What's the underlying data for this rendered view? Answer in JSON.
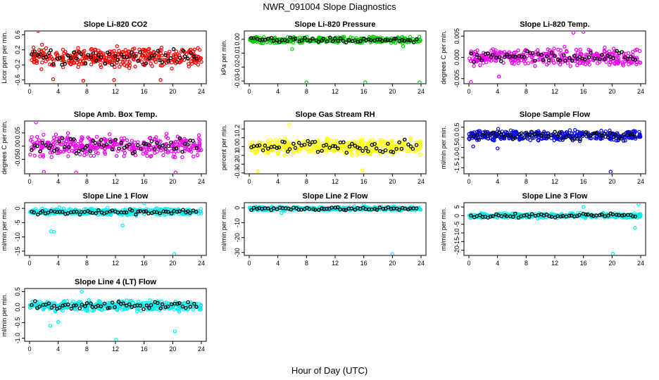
{
  "page": {
    "title": "NWR_091004  Slope Diagnostics",
    "xlabel": "Hour of Day (UTC)"
  },
  "chart_data": [
    {
      "type": "scatter",
      "title": "Slope Li-820 CO2",
      "ylabel": "Licor ppm per min.",
      "color": "#ff0000",
      "xlim": [
        0,
        24
      ],
      "ylim": [
        -0.7,
        0.7
      ],
      "xticks": [
        0,
        4,
        8,
        12,
        16,
        20,
        24
      ],
      "yticks": [
        -0.6,
        -0.2,
        0.2,
        0.6
      ],
      "ytick_labels": [
        "-0.6",
        "-0.2",
        "0.2",
        "0.6"
      ],
      "center": 0.0,
      "spread": 0.22,
      "outliers": [
        [
          1.2,
          0.7
        ],
        [
          7.5,
          -0.62
        ],
        [
          11.8,
          -0.6
        ],
        [
          18.3,
          -0.6
        ],
        [
          3.3,
          -0.58
        ]
      ],
      "n": 380,
      "seed": 11
    },
    {
      "type": "scatter",
      "title": "Slope Li-820 Pressure",
      "ylabel": "kPa per min.",
      "color": "#00cc00",
      "xlim": [
        0,
        24
      ],
      "ylim": [
        -0.032,
        0.006
      ],
      "xticks": [
        0,
        4,
        8,
        12,
        16,
        20,
        24
      ],
      "yticks": [
        -0.03,
        -0.02,
        -0.01,
        0.0
      ],
      "ytick_labels": [
        "-0.03",
        "-0.02",
        "-0.01",
        "0.00"
      ],
      "center": -0.0005,
      "spread": 0.002,
      "outliers": [
        [
          8.0,
          -0.031
        ],
        [
          16.2,
          -0.031
        ],
        [
          23.8,
          -0.031
        ],
        [
          6.0,
          -0.007
        ],
        [
          21.5,
          -0.005
        ]
      ],
      "n": 330,
      "seed": 23
    },
    {
      "type": "scatter",
      "title": "Slope Li-820 Temp.",
      "ylabel": "degrees C per min.",
      "color": "#ee00ee",
      "xlim": [
        0,
        24
      ],
      "ylim": [
        -0.0062,
        0.0062
      ],
      "xticks": [
        0,
        4,
        8,
        12,
        16,
        20,
        24
      ],
      "yticks": [
        -0.005,
        0.0,
        0.005
      ],
      "ytick_labels": [
        "-0.005",
        "0.000",
        "0.005"
      ],
      "center": 0.0,
      "spread": 0.0017,
      "outliers": [
        [
          0.3,
          -0.0058
        ],
        [
          16.0,
          0.006
        ],
        [
          14.6,
          0.0058
        ],
        [
          4.2,
          -0.0045
        ]
      ],
      "n": 360,
      "seed": 37
    },
    {
      "type": "scatter",
      "title": "Slope Amb. Box Temp.",
      "ylabel": "degrees C per min.",
      "color": "#ee00ee",
      "xlim": [
        0,
        24
      ],
      "ylim": [
        -0.105,
        0.095
      ],
      "xticks": [
        0,
        4,
        8,
        12,
        16,
        20,
        24
      ],
      "yticks": [
        -0.05,
        0.0,
        0.05
      ],
      "ytick_labels": [
        "-0.05",
        "0.00",
        "0.05"
      ],
      "center": 0.0,
      "spread": 0.034,
      "outliers": [
        [
          2.0,
          -0.098
        ],
        [
          6.5,
          -0.1
        ],
        [
          20.4,
          -0.1
        ],
        [
          0.9,
          0.09
        ]
      ],
      "n": 360,
      "seed": 41
    },
    {
      "type": "scatter",
      "title": "Slope Gas Stream RH",
      "ylabel": "percent per min.",
      "color": "#ffff00",
      "xlim": [
        0,
        24
      ],
      "ylim": [
        -0.31,
        0.29
      ],
      "xticks": [
        0,
        4,
        8,
        12,
        16,
        20,
        24
      ],
      "yticks": [
        -0.3,
        -0.2,
        -0.1,
        0.0,
        0.1,
        0.2
      ],
      "ytick_labels": [
        "-0.3",
        "-0.2",
        "-0.1",
        "0.0",
        "0.1",
        "0.2"
      ],
      "center": 0.0,
      "spread": 0.08,
      "outliers": [
        [
          5.6,
          0.25
        ],
        [
          1.2,
          -0.28
        ],
        [
          15.8,
          -0.27
        ]
      ],
      "n": 380,
      "seed": 53
    },
    {
      "type": "scatter",
      "title": "Slope Sample Flow",
      "ylabel": "ml/min per min.",
      "color": "#0000ee",
      "xlim": [
        0,
        24
      ],
      "ylim": [
        -1.8,
        0.8
      ],
      "xticks": [
        0,
        4,
        8,
        12,
        16,
        20,
        24
      ],
      "yticks": [
        -1.5,
        -1.0,
        -0.5,
        0.0,
        0.5
      ],
      "ytick_labels": [
        "-1.5",
        "-1.0",
        "-0.5",
        "0.0",
        "0.5"
      ],
      "center": 0.1,
      "spread": 0.22,
      "outliers": [
        [
          19.8,
          -1.7
        ],
        [
          4.0,
          -0.55
        ],
        [
          0.6,
          -0.45
        ]
      ],
      "n": 360,
      "seed": 67
    },
    {
      "type": "scatter",
      "title": "Slope Line 1 Flow",
      "ylabel": "ml/min per min.",
      "color": "#00eeee",
      "xlim": [
        0,
        24
      ],
      "ylim": [
        -16.5,
        2.0
      ],
      "xticks": [
        0,
        4,
        8,
        12,
        16,
        20,
        24
      ],
      "yticks": [
        -15,
        -10,
        -5,
        0
      ],
      "ytick_labels": [
        "-15",
        "-10",
        "-5",
        "0"
      ],
      "center": -1.2,
      "spread": 1.0,
      "outliers": [
        [
          20.2,
          -16.0
        ],
        [
          3.0,
          -8.0
        ],
        [
          3.4,
          -8.2
        ],
        [
          13.0,
          -6.0
        ],
        [
          16.0,
          1.8
        ]
      ],
      "n": 380,
      "seed": 79
    },
    {
      "type": "scatter",
      "title": "Slope Line 2 Flow",
      "ylabel": "ml/min per min.",
      "color": "#00eeee",
      "xlim": [
        0,
        24
      ],
      "ylim": [
        -32,
        3.5
      ],
      "xticks": [
        0,
        4,
        8,
        12,
        16,
        20,
        24
      ],
      "yticks": [
        -30,
        -20,
        -10,
        0
      ],
      "ytick_labels": [
        "-30",
        "-20",
        "-10",
        "0"
      ],
      "center": -0.5,
      "spread": 1.1,
      "outliers": [
        [
          20.0,
          -31.0
        ],
        [
          16.0,
          2.8
        ],
        [
          4.5,
          -3.5
        ]
      ],
      "n": 380,
      "seed": 83
    },
    {
      "type": "scatter",
      "title": "Slope Line 3 Flow",
      "ylabel": "ml/min per min.",
      "color": "#00eeee",
      "xlim": [
        0,
        24
      ],
      "ylim": [
        -23,
        7.5
      ],
      "xticks": [
        0,
        4,
        8,
        12,
        16,
        20,
        24
      ],
      "yticks": [
        -20,
        -15,
        -10,
        -5,
        0,
        5
      ],
      "ytick_labels": [
        "-20",
        "-15",
        "-10",
        "-5",
        "0",
        "5"
      ],
      "center": 0.0,
      "spread": 1.2,
      "outliers": [
        [
          20.1,
          -22.0
        ],
        [
          23.7,
          6.5
        ],
        [
          16.0,
          5.0
        ],
        [
          23.2,
          -7.0
        ]
      ],
      "n": 380,
      "seed": 97
    },
    {
      "type": "scatter",
      "title": "Slope Line 4 (LT) Flow",
      "ylabel": "ml/min per min.",
      "color": "#00eeee",
      "xlim": [
        0,
        24
      ],
      "ylim": [
        -1.1,
        0.6
      ],
      "xticks": [
        0,
        4,
        8,
        12,
        16,
        20,
        24
      ],
      "yticks": [
        -1.0,
        -0.5,
        0.0,
        0.5
      ],
      "ytick_labels": [
        "-1.0",
        "-0.5",
        "0.0",
        "0.5"
      ],
      "center": 0.05,
      "spread": 0.14,
      "outliers": [
        [
          12.1,
          -1.05
        ],
        [
          7.3,
          0.5
        ],
        [
          20.3,
          -0.78
        ],
        [
          2.9,
          -0.6
        ],
        [
          4.0,
          -0.48
        ]
      ],
      "n": 380,
      "seed": 101
    }
  ]
}
